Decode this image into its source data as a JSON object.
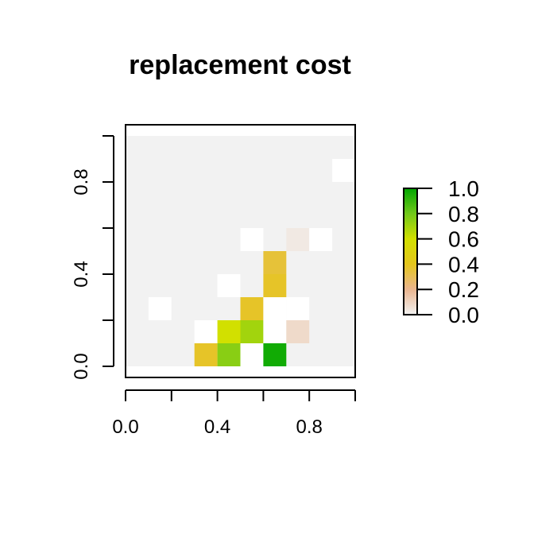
{
  "chart_data": {
    "type": "heatmap",
    "title": "replacement cost",
    "xlabel": "",
    "ylabel": "",
    "xlim": [
      0.0,
      1.0
    ],
    "ylim": [
      0.0,
      1.0
    ],
    "x_ticks": [
      0.0,
      0.2,
      0.4,
      0.6,
      0.8,
      1.0
    ],
    "x_tick_labels": [
      "0.0",
      "",
      "0.4",
      "",
      "0.8",
      ""
    ],
    "y_ticks": [
      0.0,
      0.2,
      0.4,
      0.6,
      0.8,
      1.0
    ],
    "y_tick_labels": [
      "0.0",
      "",
      "0.4",
      "",
      "0.8",
      ""
    ],
    "grid": false,
    "grid_resolution": 0.1,
    "background_color": "#f2f2f2",
    "na_color": "#ffffff",
    "colorbar": {
      "min": 0.0,
      "max": 1.0,
      "ticks": [
        0.0,
        0.2,
        0.4,
        0.6,
        0.8,
        1.0
      ],
      "tick_labels": [
        "0.0",
        "0.2",
        "0.4",
        "0.6",
        "0.8",
        "1.0"
      ],
      "position": "right",
      "colors": [
        "#f2f2f2",
        "#eab58f",
        "#e5c61c",
        "#d2e000",
        "#71c81a",
        "#00a600"
      ]
    },
    "cells": [
      {
        "x": 0.95,
        "y": 0.85,
        "value": null
      },
      {
        "x": 0.55,
        "y": 0.55,
        "value": null
      },
      {
        "x": 0.75,
        "y": 0.55,
        "value": 0.03
      },
      {
        "x": 0.85,
        "y": 0.55,
        "value": null
      },
      {
        "x": 0.65,
        "y": 0.45,
        "value": 0.35
      },
      {
        "x": 0.45,
        "y": 0.35,
        "value": null
      },
      {
        "x": 0.65,
        "y": 0.35,
        "value": 0.38
      },
      {
        "x": 0.15,
        "y": 0.25,
        "value": null
      },
      {
        "x": 0.55,
        "y": 0.25,
        "value": 0.38
      },
      {
        "x": 0.65,
        "y": 0.25,
        "value": null
      },
      {
        "x": 0.75,
        "y": 0.25,
        "value": null
      },
      {
        "x": 0.35,
        "y": 0.15,
        "value": null
      },
      {
        "x": 0.45,
        "y": 0.15,
        "value": 0.6
      },
      {
        "x": 0.55,
        "y": 0.15,
        "value": 0.7
      },
      {
        "x": 0.65,
        "y": 0.15,
        "value": null
      },
      {
        "x": 0.75,
        "y": 0.15,
        "value": 0.08
      },
      {
        "x": 0.35,
        "y": 0.05,
        "value": 0.38
      },
      {
        "x": 0.45,
        "y": 0.05,
        "value": 0.75
      },
      {
        "x": 0.55,
        "y": 0.05,
        "value": null
      },
      {
        "x": 0.65,
        "y": 0.05,
        "value": 0.97
      }
    ]
  }
}
